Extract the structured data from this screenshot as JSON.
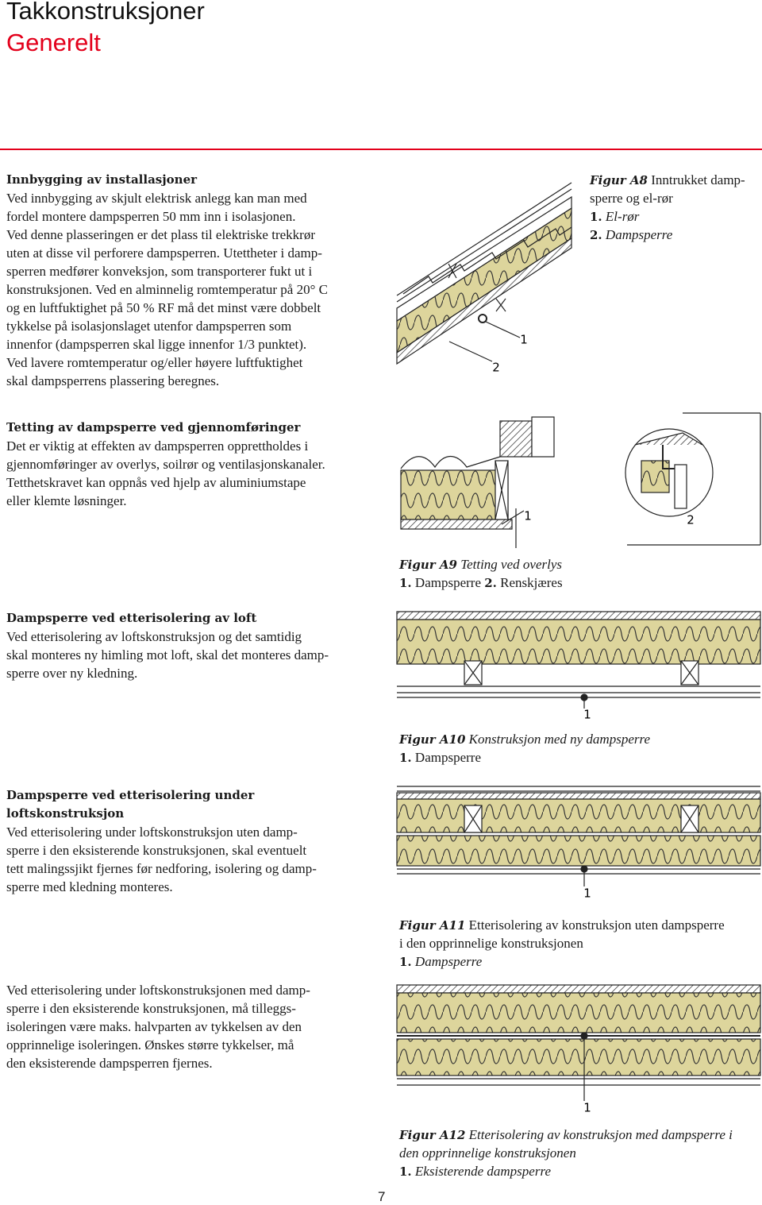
{
  "header": {
    "title": "Takkonstruksjoner",
    "subtitle": "Generelt"
  },
  "sections": [
    {
      "heading_lines": [
        "Innbygging av installasjoner"
      ],
      "lines": [
        "Ved innbygging av skjult elektrisk anlegg kan man med",
        "fordel montere dampsperren 50 mm inn i isolasjonen.",
        "Ved denne plasseringen er det plass til elektriske trekkrør",
        "uten at disse vil perforere dampsperren. Utettheter i damp-",
        "sperren medfører konveksjon, som transporterer fukt ut i",
        "konstruksjonen. Ved en alminnelig romtemperatur på 20° C",
        "og en luftfuktighet på 50 % RF må det minst være dobbelt",
        "tykkelse på isolasjonslaget utenfor dampsperren som",
        "innenfor (dampsperren skal ligge innenfor 1/3 punktet).",
        "Ved lavere romtemperatur og/eller høyere luftfuktighet",
        "skal dampsperrens plassering beregnes."
      ]
    },
    {
      "heading_lines": [
        "Tetting av dampsperre ved gjennomføringer"
      ],
      "lines": [
        "Det er viktig at effekten av dampsperren opprettholdes i",
        "gjennomføringer av overlys, soilrør og ventilasjonskanaler.",
        "Tetthetskravet kan oppnås ved hjelp av aluminiumstape",
        "eller klemte løsninger."
      ]
    },
    {
      "heading_lines": [
        "Dampsperre ved etterisolering av loft"
      ],
      "lines": [
        "Ved etterisolering av loftskonstruksjon og det samtidig",
        "skal monteres ny himling mot loft, skal det monteres damp-",
        "sperre over ny kledning."
      ]
    },
    {
      "heading_lines": [
        "Dampsperre ved etterisolering under",
        "loftskonstruksjon"
      ],
      "lines": [
        "Ved etterisolering under loftskonstruksjon uten damp-",
        "sperre i den eksisterende konstruksjonen, skal eventuelt",
        "tett malingssjikt fjernes før nedforing, isolering og damp-",
        "sperre med kledning monteres."
      ]
    },
    {
      "lines": [
        "Ved etterisolering under loftskonstruksjonen med damp-",
        "sperre i den eksisterende konstruksjonen, må tilleggs-",
        "isoleringen være maks. halvparten av tykkelsen av den",
        "opprinnelige isoleringen. Ønskes større tykkelser, må",
        "den eksisterende dampsperren fjernes."
      ]
    }
  ],
  "figures": [
    {
      "label": "Figur A8",
      "title_lines": [
        "Inntrukket damp-",
        "sperre og el-rør"
      ],
      "items": [
        {
          "number": "1.",
          "text": "El-rør"
        },
        {
          "number": "2.",
          "text": "Dampsperre"
        }
      ],
      "callouts": [
        "1",
        "2"
      ]
    },
    {
      "label": "Figur A9",
      "title_lines": [
        "Tetting ved overlys"
      ],
      "items": [
        {
          "number": "1.",
          "text": "Dampsperre"
        },
        {
          "number": "2.",
          "text": "Renskjæres"
        }
      ],
      "callouts": [
        "1",
        "2"
      ]
    },
    {
      "label": "Figur A10",
      "title_lines": [
        "Konstruksjon med ny dampsperre"
      ],
      "items": [
        {
          "number": "1.",
          "text": "Dampsperre"
        }
      ],
      "callouts": [
        "1"
      ]
    },
    {
      "label": "Figur A11",
      "title_lines": [
        "Etterisolering av konstruksjon uten dampsperre",
        "i den opprinnelige konstruksjonen"
      ],
      "items": [
        {
          "number": "1.",
          "text": "Dampsperre"
        }
      ],
      "callouts": [
        "1"
      ]
    },
    {
      "label": "Figur A12",
      "title_lines": [
        "Etterisolering av konstruksjon med dampsperre i",
        "den opprinnelige konstruksjonen"
      ],
      "items": [
        {
          "number": "1.",
          "text": "Eksisterende dampsperre"
        }
      ],
      "callouts": [
        "1"
      ]
    }
  ],
  "page_number": "7"
}
